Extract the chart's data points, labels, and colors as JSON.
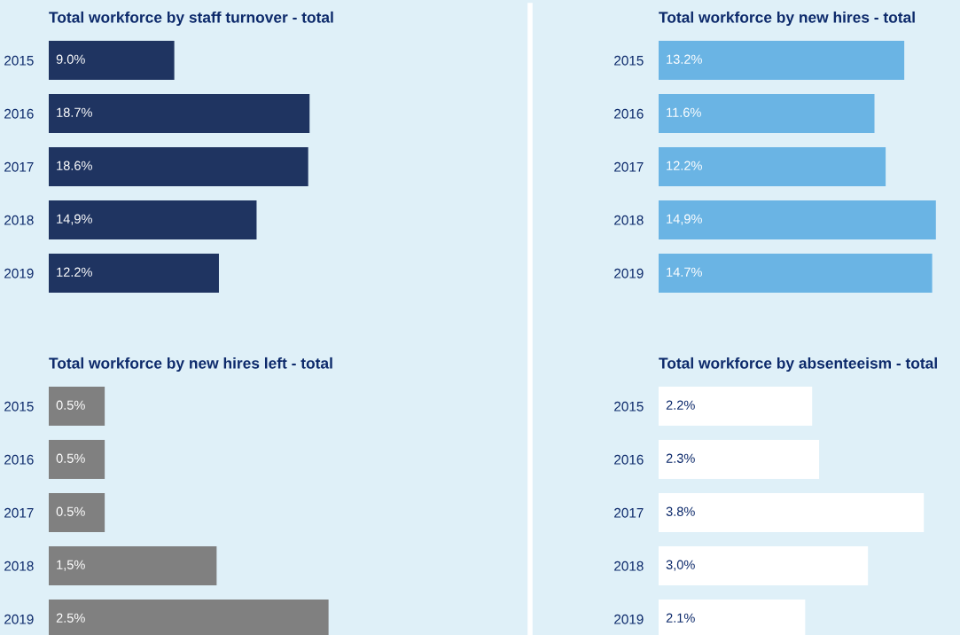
{
  "chart_data": [
    {
      "type": "bar",
      "orientation": "horizontal",
      "title": "Total workforce by staff turnover - total",
      "categories": [
        "2015",
        "2016",
        "2017",
        "2018",
        "2019"
      ],
      "values": [
        9.0,
        18.7,
        18.6,
        14.9,
        12.2
      ],
      "value_labels": [
        "9.0%",
        "18.7%",
        "18.6%",
        "14,9%",
        "12.2%"
      ],
      "color": "#1f3461",
      "tick_labels": "y",
      "grid": false,
      "legend": false
    },
    {
      "type": "bar",
      "orientation": "horizontal",
      "title": "Total workforce by new hires - total",
      "categories": [
        "2015",
        "2016",
        "2017",
        "2018",
        "2019"
      ],
      "values": [
        13.2,
        11.6,
        12.2,
        14.9,
        14.7
      ],
      "value_labels": [
        "13.2%",
        "11.6%",
        "12.2%",
        "14,9%",
        "14.7%"
      ],
      "color": "#6ab4e4",
      "tick_labels": "y",
      "grid": false,
      "legend": false
    },
    {
      "type": "bar",
      "orientation": "horizontal",
      "title": "Total workforce by new hires left - total",
      "categories": [
        "2015",
        "2016",
        "2017",
        "2018",
        "2019"
      ],
      "values": [
        0.5,
        0.5,
        0.5,
        1.5,
        2.5
      ],
      "value_labels": [
        "0.5%",
        "0.5%",
        "0.5%",
        "1,5%",
        "2.5%"
      ],
      "color": "#808080",
      "tick_labels": "y",
      "grid": false,
      "legend": false
    },
    {
      "type": "bar",
      "orientation": "horizontal",
      "title": "Total workforce by absenteeism - total",
      "categories": [
        "2015",
        "2016",
        "2017",
        "2018",
        "2019"
      ],
      "values": [
        2.2,
        2.3,
        3.8,
        3.0,
        2.1
      ],
      "value_labels": [
        "2.2%",
        "2.3%",
        "3.8%",
        "3,0%",
        "2.1%"
      ],
      "color": "#ffffff",
      "tick_labels": "y",
      "grid": false,
      "legend": false
    }
  ]
}
